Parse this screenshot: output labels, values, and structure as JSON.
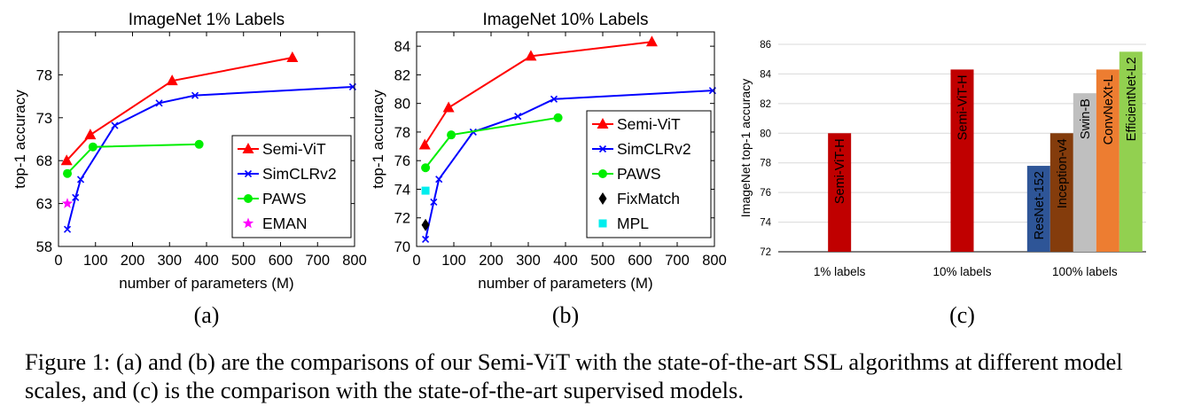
{
  "chart_data": [
    {
      "type": "line",
      "panel_label": "(a)",
      "title": "ImageNet 1% Labels",
      "xlabel": "number of parameters (M)",
      "ylabel": "top-1 accuracy",
      "xlim": [
        0,
        800
      ],
      "ylim": [
        58,
        83
      ],
      "xticks": [
        0,
        100,
        200,
        300,
        400,
        500,
        600,
        700,
        800
      ],
      "yticks": [
        58,
        63,
        68,
        73,
        78
      ],
      "series": [
        {
          "name": "Semi-ViT",
          "color": "#ff0000",
          "marker": "triangle",
          "x": [
            22,
            86,
            307,
            632
          ],
          "y": [
            68.0,
            71.0,
            77.3,
            80.0
          ]
        },
        {
          "name": "SimCLRv2",
          "color": "#0000ff",
          "marker": "x",
          "x": [
            24,
            46,
            60,
            152,
            272,
            369,
            795
          ],
          "y": [
            60.0,
            63.7,
            65.8,
            72.1,
            74.7,
            75.6,
            76.6
          ]
        },
        {
          "name": "PAWS",
          "color": "#00ee00",
          "marker": "circle",
          "x": [
            24,
            93,
            380
          ],
          "y": [
            66.5,
            69.6,
            69.9
          ]
        },
        {
          "name": "EMAN",
          "color": "#ff00ff",
          "marker": "star",
          "x": [
            24
          ],
          "y": [
            63.0
          ]
        }
      ]
    },
    {
      "type": "line",
      "panel_label": "(b)",
      "title": "ImageNet 10% Labels",
      "xlabel": "number of parameters (M)",
      "ylabel": "top-1 accuracy",
      "xlim": [
        0,
        800
      ],
      "ylim": [
        70,
        85
      ],
      "xticks": [
        0,
        100,
        200,
        300,
        400,
        500,
        600,
        700,
        800
      ],
      "yticks": [
        70,
        72,
        74,
        76,
        78,
        80,
        82,
        84
      ],
      "series": [
        {
          "name": "Semi-ViT",
          "color": "#ff0000",
          "marker": "triangle",
          "x": [
            22,
            86,
            307,
            632
          ],
          "y": [
            77.1,
            79.7,
            83.3,
            84.3
          ]
        },
        {
          "name": "SimCLRv2",
          "color": "#0000ff",
          "marker": "x",
          "x": [
            24,
            46,
            60,
            152,
            272,
            369,
            795
          ],
          "y": [
            70.5,
            73.1,
            74.7,
            78.0,
            79.1,
            80.3,
            80.9
          ]
        },
        {
          "name": "PAWS",
          "color": "#00ee00",
          "marker": "circle",
          "x": [
            24,
            93,
            380
          ],
          "y": [
            75.5,
            77.8,
            79.0
          ]
        },
        {
          "name": "FixMatch",
          "color": "#000000",
          "marker": "diamond",
          "x": [
            24
          ],
          "y": [
            71.5
          ]
        },
        {
          "name": "MPL",
          "color": "#00eeee",
          "marker": "square",
          "x": [
            24
          ],
          "y": [
            73.9
          ]
        }
      ]
    },
    {
      "type": "bar",
      "panel_label": "(c)",
      "ylabel": "ImageNet top-1 accuracy",
      "ylim": [
        72,
        86
      ],
      "yticks": [
        72,
        74,
        76,
        78,
        80,
        82,
        84,
        86
      ],
      "groups": [
        {
          "label": "1% labels",
          "bars": [
            {
              "name": "Semi-ViT-H",
              "value": 80.0,
              "color": "#c00000"
            }
          ]
        },
        {
          "label": "10% labels",
          "bars": [
            {
              "name": "Semi-ViT-H",
              "value": 84.3,
              "color": "#c00000"
            }
          ]
        },
        {
          "label": "100% labels",
          "bars": [
            {
              "name": "ResNet-152",
              "value": 77.8,
              "color": "#2e5597"
            },
            {
              "name": "Inception-v4",
              "value": 80.0,
              "color": "#843c0c"
            },
            {
              "name": "Swin-B",
              "value": 82.7,
              "color": "#bfbfbf"
            },
            {
              "name": "ConvNeXt-L",
              "value": 84.3,
              "color": "#ed7d31"
            },
            {
              "name": "EfficientNet-L2",
              "value": 85.5,
              "color": "#92d050"
            }
          ]
        }
      ]
    }
  ],
  "caption": "Figure 1: (a) and (b) are the comparisons of our Semi-ViT with the state-of-the-art SSL algorithms at different model scales, and (c) is the comparison with the state-of-the-art supervised models."
}
